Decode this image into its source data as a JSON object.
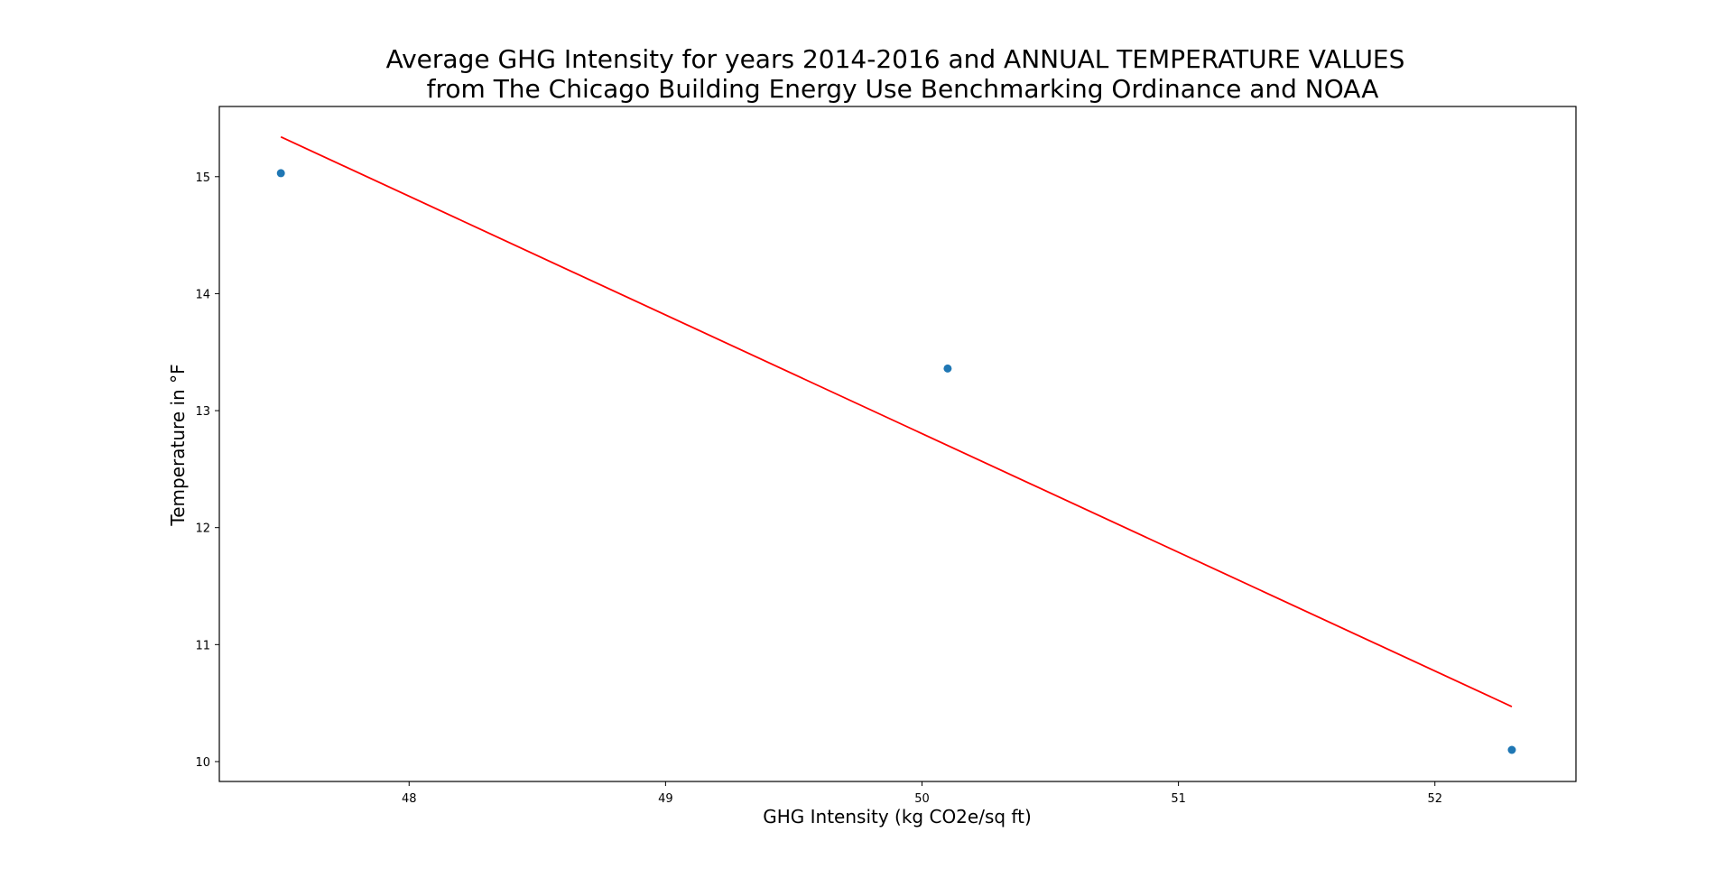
{
  "chart_data": {
    "type": "scatter",
    "title_lines": [
      "Average GHG Intensity for years 2014-2016 and  ANNUAL TEMPERATURE VALUES",
      "from The Chicago Building Energy Use Benchmarking Ordinance and NOAA"
    ],
    "xlabel": "GHG Intensity (kg CO2e/sq ft)",
    "ylabel": "Temperature in °F",
    "xlim": [
      47.26,
      52.55
    ],
    "ylim": [
      9.83,
      15.6
    ],
    "xticks": [
      48,
      49,
      50,
      51,
      52
    ],
    "yticks": [
      10,
      11,
      12,
      13,
      14,
      15
    ],
    "grid": false,
    "legend": "none",
    "series": [
      {
        "type": "scatter",
        "color": "#1f77b4",
        "points": [
          {
            "x": 47.5,
            "y": 15.03
          },
          {
            "x": 50.1,
            "y": 13.36
          },
          {
            "x": 52.3,
            "y": 10.1
          }
        ]
      },
      {
        "type": "line",
        "color": "#ff0000",
        "points": [
          {
            "x": 47.5,
            "y": 15.34
          },
          {
            "x": 52.3,
            "y": 10.47
          }
        ]
      }
    ]
  }
}
